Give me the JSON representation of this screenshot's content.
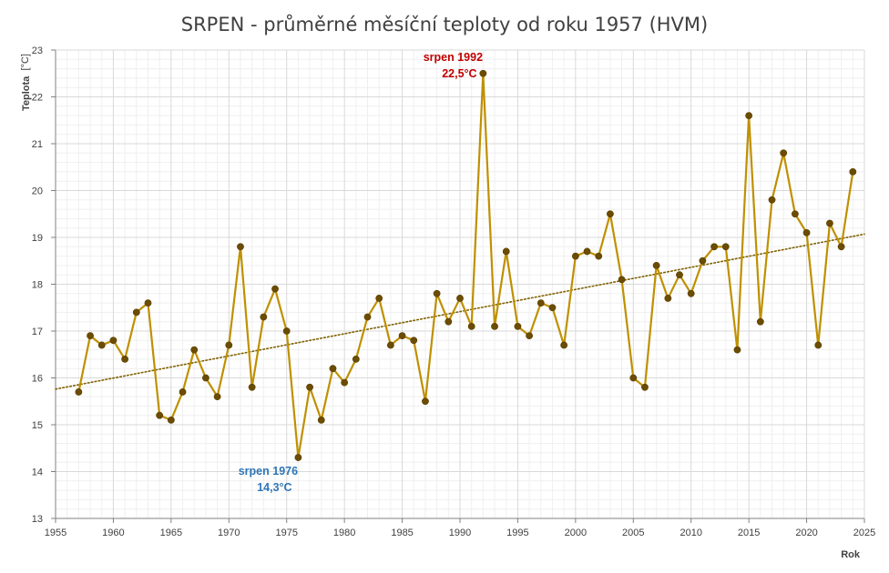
{
  "chart_data": {
    "type": "line",
    "title": "SRPEN - průměrné měsíční teploty od roku 1957 (HVM)",
    "xlabel": "Rok",
    "ylabel": "Teplota",
    "ylabel_unit": "[°C]",
    "xlim": [
      1955,
      2025
    ],
    "ylim": [
      13,
      23
    ],
    "x_ticks": [
      1955,
      1960,
      1965,
      1970,
      1975,
      1980,
      1985,
      1990,
      1995,
      2000,
      2005,
      2010,
      2015,
      2020,
      2025
    ],
    "y_ticks": [
      13,
      14,
      15,
      16,
      17,
      18,
      19,
      20,
      21,
      22,
      23
    ],
    "grid": true,
    "minor_grid": true,
    "legend": "none",
    "colors": {
      "series": "#BF9000",
      "marker": "#6B4C00",
      "trend": "#7F6000",
      "max": "#C00000",
      "min": "#2E75B6",
      "grid": "#D9D9D9",
      "minor_grid": "#EFEFEF"
    },
    "series": [
      {
        "x": [
          1957,
          1958,
          1959,
          1960,
          1961,
          1962,
          1963,
          1964,
          1965,
          1966,
          1967,
          1968,
          1969,
          1970,
          1971,
          1972,
          1973,
          1974,
          1975,
          1976,
          1977,
          1978,
          1979,
          1980,
          1981,
          1982,
          1983,
          1984,
          1985,
          1986,
          1987,
          1988,
          1989,
          1990,
          1991,
          1992,
          1993,
          1994,
          1995,
          1996,
          1997,
          1998,
          1999,
          2000,
          2001,
          2002,
          2003,
          2004,
          2005,
          2006,
          2007,
          2008,
          2009,
          2010,
          2011,
          2012,
          2013,
          2014,
          2015,
          2016,
          2017,
          2018,
          2019,
          2020,
          2021,
          2022,
          2023,
          2024
        ],
        "values": [
          15.7,
          16.9,
          16.7,
          16.8,
          16.4,
          17.4,
          17.6,
          15.2,
          15.1,
          15.7,
          16.6,
          16.0,
          15.6,
          16.7,
          18.8,
          15.8,
          17.3,
          17.9,
          17.0,
          14.3,
          15.8,
          15.1,
          16.2,
          15.9,
          16.4,
          17.3,
          17.7,
          16.7,
          16.9,
          16.8,
          15.5,
          17.8,
          17.2,
          17.7,
          17.1,
          22.5,
          17.1,
          18.7,
          17.1,
          16.9,
          17.6,
          17.5,
          16.7,
          18.6,
          18.7,
          18.6,
          19.5,
          18.1,
          16.0,
          15.8,
          18.4,
          17.7,
          18.2,
          17.8,
          18.5,
          18.8,
          18.8,
          16.6,
          21.6,
          17.2,
          19.8,
          20.8,
          19.5,
          19.1,
          16.7,
          19.3,
          18.8,
          20.4
        ]
      }
    ],
    "trendline": {
      "type": "linear",
      "style": "dotted",
      "x": [
        1955,
        2025
      ],
      "values": [
        15.76,
        19.07
      ]
    },
    "annotations": [
      {
        "id": "max",
        "line1": "srpen 1992",
        "line2": "22,5°C",
        "year": 1992,
        "value": 22.5
      },
      {
        "id": "min",
        "line1": "srpen 1976",
        "line2": "14,3°C",
        "year": 1976,
        "value": 14.3
      }
    ]
  }
}
